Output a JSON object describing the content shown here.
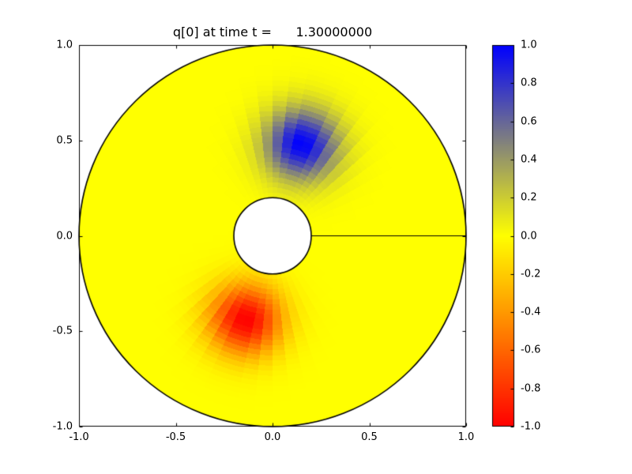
{
  "figure": {
    "background_color": "#ffffff",
    "size": "800x600"
  },
  "chart_data": {
    "type": "heatmap",
    "title": "q[0] at time t =      1.30000000",
    "xlabel": "",
    "ylabel": "",
    "xlim": [
      -1.0,
      1.0
    ],
    "ylim": [
      -1.0,
      1.0
    ],
    "xtick_labels": [
      "-1.0",
      "-0.5",
      "0.0",
      "0.5",
      "1.0"
    ],
    "ytick_labels": [
      "-1.0",
      "-0.5",
      "0.0",
      "0.5",
      "1.0"
    ],
    "grid": false,
    "frame_color": "#000000",
    "tick_direction": "in",
    "domain": {
      "shape": "annulus-with-slit",
      "outer_radius": 1.0,
      "inner_radius": 0.2,
      "slit": {
        "from": [
          0.2,
          0.0
        ],
        "to": [
          1.0,
          0.0
        ]
      },
      "outline_color": "#000000",
      "outside_fill": "#ffffff",
      "polar_grid_cells": {
        "radial": 30,
        "angular": 60
      }
    },
    "field": {
      "background_value": 0.0,
      "gaussians": [
        {
          "center": [
            0.15,
            0.48
          ],
          "sigma": 0.13,
          "amplitude": 1.0
        },
        {
          "center": [
            -0.14,
            -0.44
          ],
          "sigma": 0.13,
          "amplitude": -1.0
        }
      ]
    },
    "colorbar": {
      "position": "right",
      "vmin": -1.0,
      "vmax": 1.0,
      "tick_labels": [
        "1.0",
        "0.8",
        "0.6",
        "0.4",
        "0.2",
        "0.0",
        "-0.2",
        "-0.4",
        "-0.6",
        "-0.8",
        "-1.0"
      ],
      "colormap_stops": [
        {
          "value": -1.0,
          "color": "#ff0000"
        },
        {
          "value": 0.0,
          "color": "#ffff00"
        },
        {
          "value": 1.0,
          "color": "#0000ff"
        }
      ]
    }
  }
}
